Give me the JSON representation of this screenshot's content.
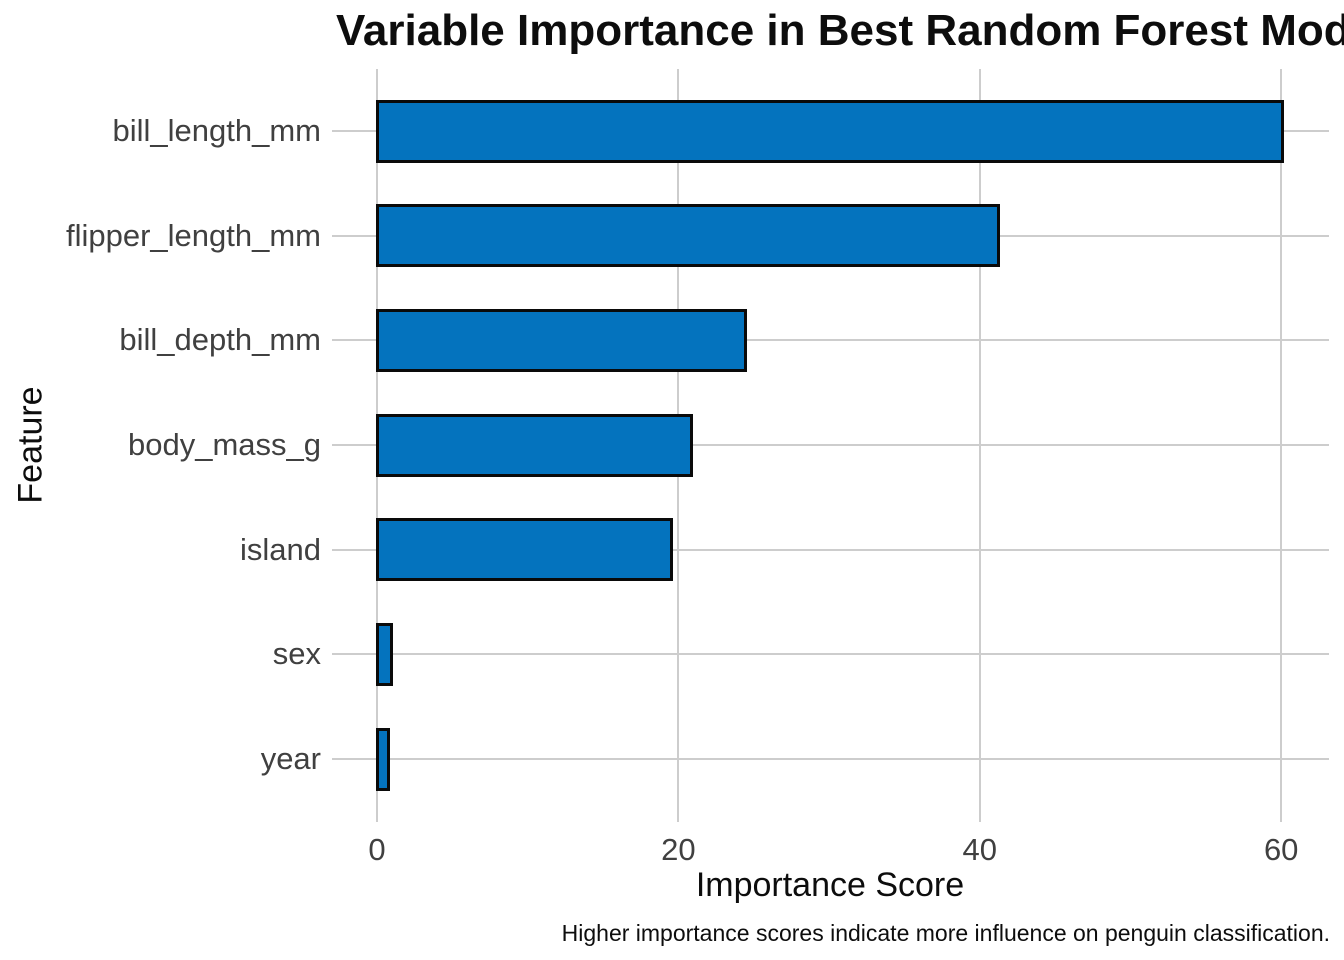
{
  "chart_data": {
    "type": "bar",
    "orientation": "horizontal",
    "title": "Variable Importance in Best Random Forest Model",
    "xlabel": "Importance Score",
    "ylabel": "Feature",
    "caption": "Higher importance scores indicate more influence on penguin classification.",
    "categories": [
      "bill_length_mm",
      "flipper_length_mm",
      "bill_depth_mm",
      "body_mass_g",
      "island",
      "sex",
      "year"
    ],
    "values": [
      60.1,
      41.3,
      24.5,
      20.9,
      19.6,
      1.0,
      0.8
    ],
    "x_ticks": [
      0,
      20,
      40,
      60
    ],
    "xlim": [
      -3,
      63.3
    ],
    "grid": "major-only",
    "legend_position": "none",
    "colors": {
      "bar_fill": "#0473be",
      "bar_border": "#0a0a0a",
      "gridline": "#cdcdcd",
      "tick_label": "#404040",
      "text": "#0d0d0d",
      "background": "#ffffff"
    }
  }
}
